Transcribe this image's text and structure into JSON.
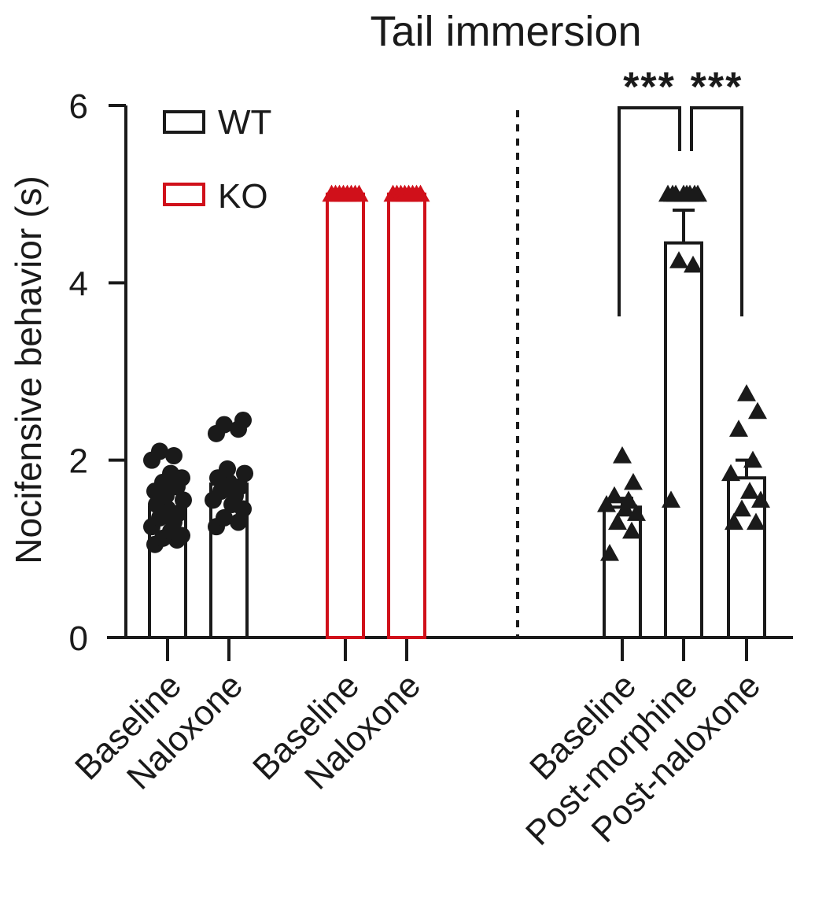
{
  "chart_data": {
    "type": "bar",
    "title": "Tail immersion",
    "ylabel": "Nocifensive behavior (s)",
    "xlabel": "",
    "ylim": [
      0,
      6
    ],
    "yticks": [
      0,
      2,
      4,
      6
    ],
    "grid": false,
    "legend": {
      "placement": "top-left",
      "entries": [
        {
          "label": "WT",
          "color": "#1a1a1a"
        },
        {
          "label": "KO",
          "color": "#d0101a"
        }
      ]
    },
    "colors": {
      "wt": "#1a1a1a",
      "ko": "#d0101a"
    },
    "bars": [
      {
        "label": "Baseline",
        "group": "WT",
        "value": 1.47,
        "marker": "circle",
        "points": [
          1.05,
          1.1,
          1.12,
          1.15,
          1.2,
          1.25,
          1.3,
          1.35,
          1.4,
          1.45,
          1.5,
          1.55,
          1.6,
          1.65,
          1.7,
          1.75,
          1.8,
          1.85,
          2.0,
          2.05,
          2.1
        ]
      },
      {
        "label": "Naloxone",
        "group": "WT",
        "value": 1.73,
        "marker": "circle",
        "points": [
          1.25,
          1.3,
          1.35,
          1.45,
          1.5,
          1.55,
          1.6,
          1.65,
          1.7,
          1.75,
          1.8,
          1.85,
          1.9,
          2.3,
          2.35,
          2.4,
          2.45
        ]
      },
      {
        "label": "Baseline",
        "group": "KO",
        "value": 5.0,
        "marker": "triangle",
        "points": [
          5.0,
          5.0,
          5.0,
          5.0,
          5.0,
          5.0,
          5.0,
          5.0
        ]
      },
      {
        "label": "Naloxone",
        "group": "KO",
        "value": 5.0,
        "marker": "triangle",
        "points": [
          5.0,
          5.0,
          5.0,
          5.0,
          5.0,
          5.0,
          5.0,
          5.0
        ]
      },
      {
        "label": "Baseline",
        "group": "WT",
        "value": 1.47,
        "error": 0.1,
        "marker": "triangle",
        "points": [
          0.95,
          1.2,
          1.3,
          1.4,
          1.45,
          1.5,
          1.55,
          1.6,
          1.75,
          2.05
        ]
      },
      {
        "label": "Post-morphine",
        "group": "WT",
        "value": 4.45,
        "error": 0.37,
        "marker": "triangle",
        "points": [
          1.55,
          4.2,
          4.25,
          5.0,
          5.0,
          5.0,
          5.0,
          5.0,
          5.0,
          5.0,
          5.0
        ]
      },
      {
        "label": "Post-naloxone",
        "group": "WT",
        "value": 1.8,
        "error": 0.2,
        "marker": "triangle",
        "points": [
          1.3,
          1.3,
          1.45,
          1.55,
          1.65,
          1.85,
          2.0,
          2.35,
          2.55,
          2.75
        ]
      }
    ],
    "significance": [
      {
        "from": 4,
        "to": 5,
        "label": "***"
      },
      {
        "from": 5,
        "to": 6,
        "label": "***"
      }
    ]
  }
}
